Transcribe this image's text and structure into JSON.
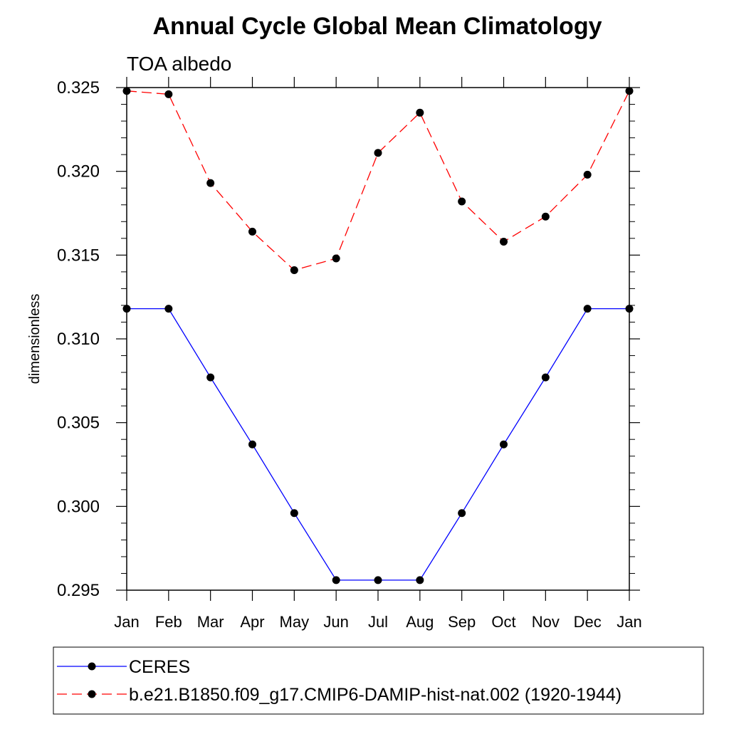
{
  "chart_data": {
    "type": "line",
    "title": "Annual Cycle Global Mean Climatology",
    "subtitle": "TOA albedo",
    "xlabel": "",
    "ylabel": "dimensionless",
    "categories": [
      "Jan",
      "Feb",
      "Mar",
      "Apr",
      "May",
      "Jun",
      "Jul",
      "Aug",
      "Sep",
      "Oct",
      "Nov",
      "Dec",
      "Jan"
    ],
    "ylim": [
      0.295,
      0.325
    ],
    "yticks": [
      "0.295",
      "0.300",
      "0.305",
      "0.310",
      "0.315",
      "0.320",
      "0.325"
    ],
    "grid": false,
    "legend_position": "bottom",
    "series": [
      {
        "name": "CERES",
        "color": "#0000ff",
        "line_style": "solid",
        "marker": "filled-circle",
        "values": [
          0.3118,
          0.3118,
          0.3077,
          0.3037,
          0.2996,
          0.2956,
          0.2956,
          0.2956,
          0.2996,
          0.3037,
          0.3077,
          0.3118,
          0.3118
        ]
      },
      {
        "name": "b.e21.B1850.f09_g17.CMIP6-DAMIP-hist-nat.002 (1920-1944)",
        "color": "#ff0000",
        "line_style": "dashed",
        "marker": "filled-circle",
        "values": [
          0.3248,
          0.3246,
          0.3193,
          0.3164,
          0.3141,
          0.3148,
          0.3211,
          0.3235,
          0.3182,
          0.3158,
          0.3173,
          0.3198,
          0.3248
        ]
      }
    ]
  }
}
